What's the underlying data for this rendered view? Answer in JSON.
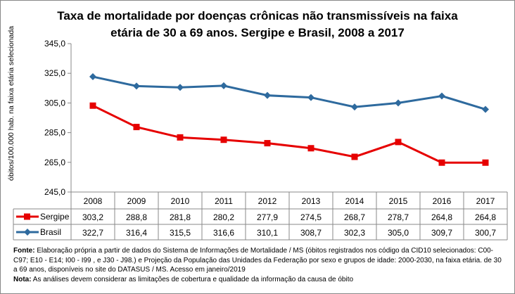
{
  "chart_data": {
    "type": "line",
    "title": "Taxa de mortalidade por doenças crônicas não transmissíveis na faixa etária de 30 a 69 anos. Sergipe e Brasil, 2008 a 2017",
    "title_lines": [
      "Taxa de mortalidade por doenças crônicas não transmissíveis na faixa",
      "etária de 30 a 69 anos. Sergipe e Brasil, 2008 a 2017"
    ],
    "ylabel": "óbitos/100.000 hab. na faixa etária selecionada",
    "ylim": [
      245,
      345
    ],
    "yticks": [
      "245,0",
      "265,0",
      "285,0",
      "305,0",
      "325,0",
      "345,0"
    ],
    "categories": [
      "2008",
      "2009",
      "2010",
      "2011",
      "2012",
      "2013",
      "2014",
      "2015",
      "2016",
      "2017"
    ],
    "series": [
      {
        "name": "Sergipe",
        "color": "#e60000",
        "marker": "square",
        "values": [
          303.2,
          288.8,
          281.8,
          280.2,
          277.9,
          274.5,
          268.7,
          278.7,
          264.8,
          264.8
        ],
        "labels": [
          "303,2",
          "288,8",
          "281,8",
          "280,2",
          "277,9",
          "274,5",
          "268,7",
          "278,7",
          "264,8",
          "264,8"
        ]
      },
      {
        "name": "Brasil",
        "color": "#2e6a9e",
        "marker": "diamond",
        "values": [
          322.7,
          316.4,
          315.5,
          316.6,
          310.1,
          308.7,
          302.3,
          305.0,
          309.7,
          300.7
        ],
        "labels": [
          "322,7",
          "316,4",
          "315,5",
          "316,6",
          "310,1",
          "308,7",
          "302,3",
          "305,0",
          "309,7",
          "300,7"
        ]
      }
    ],
    "grid": false,
    "legend": "data-table"
  },
  "notes": {
    "fonte_label": "Fonte:",
    "fonte_text": " Elaboração própria a partir de dados do Sistema de Informações de Mortalidade / MS (óbitos registrados nos código da CID10 selecionados: C00-C97; E10 - E14; I00 - I99 , e J30 - J98.) e Projeção da População das Unidades da Federação por sexo e grupos de idade: 2000-2030, na faixa etária. de 30 a 69 anos, disponíveis no site do DATASUS / MS.  Acesso em janeiro/2019",
    "nota_label": "Nota:",
    "nota_text": "  As análises devem considerar as limitações de cobertura e qualidade da informação da causa de óbito"
  }
}
